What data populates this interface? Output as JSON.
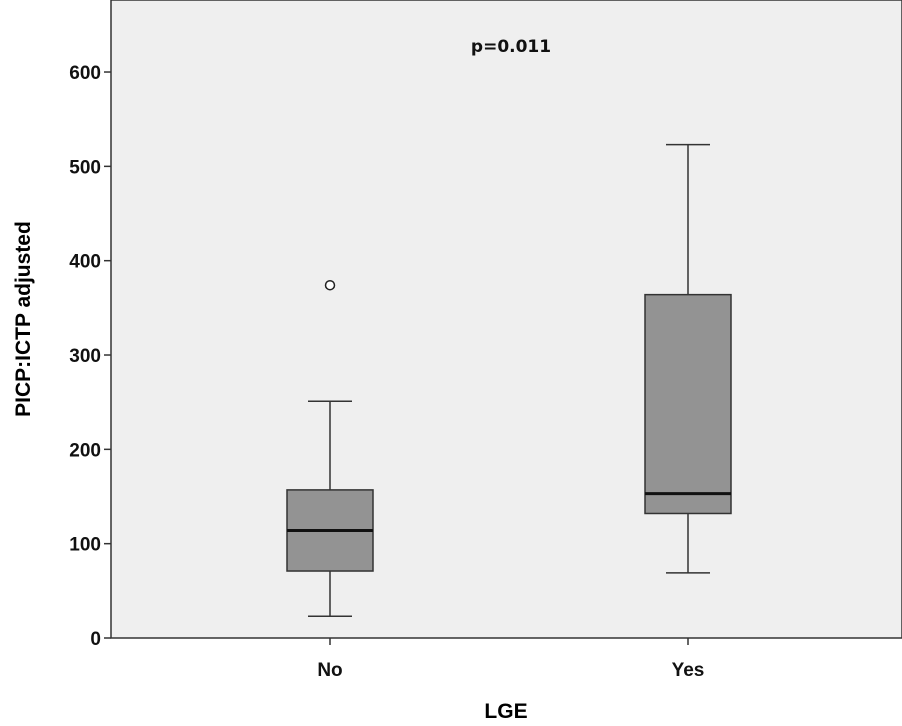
{
  "chart_data": {
    "type": "box",
    "title": "",
    "annotation": "p=0.011",
    "xlabel": "LGE",
    "ylabel": "PICP:ICTP adjusted",
    "categories": [
      "No",
      "Yes"
    ],
    "ylim": [
      0,
      650
    ],
    "yticks": [
      0,
      100,
      200,
      300,
      400,
      500,
      600
    ],
    "boxes": [
      {
        "category": "No",
        "whisker_low": 23,
        "q1": 71,
        "median": 114,
        "q3": 157,
        "whisker_high": 251,
        "outliers": [
          374
        ]
      },
      {
        "category": "Yes",
        "whisker_low": 69,
        "q1": 132,
        "median": 153,
        "q3": 364,
        "whisker_high": 523,
        "outliers": []
      }
    ],
    "grid": false,
    "colors": {
      "plot_background": "#efefef",
      "box_fill": "#939393",
      "stroke": "#333333"
    }
  }
}
